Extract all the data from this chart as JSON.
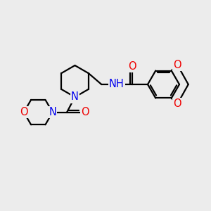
{
  "bg_color": "#ececec",
  "atom_colors": {
    "C": "#000000",
    "N": "#0000ee",
    "O": "#ee0000",
    "H": "#008080"
  },
  "bond_color": "#000000",
  "bond_width": 1.6,
  "font_size_atom": 10.5
}
